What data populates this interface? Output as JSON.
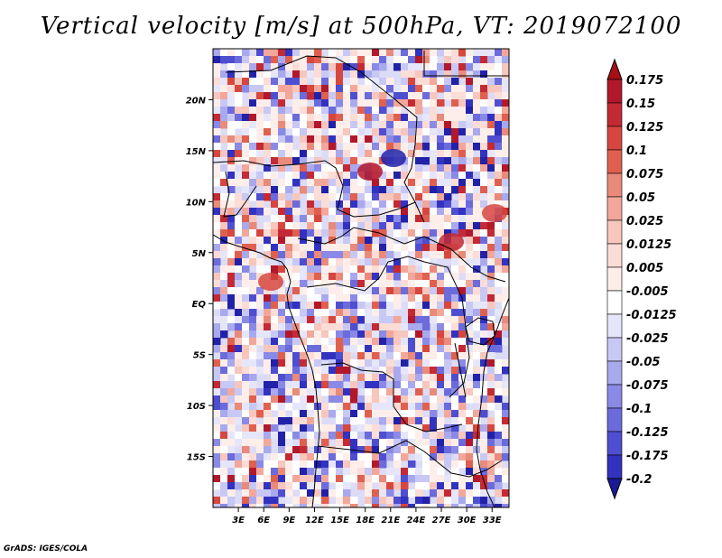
{
  "title": "Vertical velocity [m/s] at 500hPa, VT: 2019072100",
  "credit": "GrADS: IGES/COLA",
  "map": {
    "lat_range": [
      -20,
      25
    ],
    "lon_range": [
      0,
      35
    ],
    "lat_ticks": [
      {
        "value": 20,
        "label": "20N"
      },
      {
        "value": 15,
        "label": "15N"
      },
      {
        "value": 10,
        "label": "10N"
      },
      {
        "value": 5,
        "label": "5N"
      },
      {
        "value": 0,
        "label": "EQ"
      },
      {
        "value": -5,
        "label": "5S"
      },
      {
        "value": -10,
        "label": "10S"
      },
      {
        "value": -15,
        "label": "15S"
      }
    ],
    "lon_ticks": [
      {
        "value": 3,
        "label": "3E"
      },
      {
        "value": 6,
        "label": "6E"
      },
      {
        "value": 9,
        "label": "9E"
      },
      {
        "value": 12,
        "label": "12E"
      },
      {
        "value": 15,
        "label": "15E"
      },
      {
        "value": 18,
        "label": "18E"
      },
      {
        "value": 21,
        "label": "21E"
      },
      {
        "value": 24,
        "label": "24E"
      },
      {
        "value": 27,
        "label": "27E"
      },
      {
        "value": 30,
        "label": "30E"
      },
      {
        "value": 33,
        "label": "33E"
      }
    ]
  },
  "colorbar": {
    "levels": [
      {
        "label": "0.175",
        "color": "#b2182b"
      },
      {
        "label": "0.15",
        "color": "#c42a33"
      },
      {
        "label": "0.125",
        "color": "#d6473f"
      },
      {
        "label": "0.1",
        "color": "#e0604f"
      },
      {
        "label": "0.075",
        "color": "#e98a7a"
      },
      {
        "label": "0.05",
        "color": "#f2a79a"
      },
      {
        "label": "0.025",
        "color": "#f7c6bd"
      },
      {
        "label": "0.0125",
        "color": "#fbdcd6"
      },
      {
        "label": "0.005",
        "color": "#fdeeea"
      },
      {
        "label": "-0.005",
        "color": "#ffffff"
      },
      {
        "label": "-0.0125",
        "color": "#e6e6fb"
      },
      {
        "label": "-0.025",
        "color": "#c8c8f5"
      },
      {
        "label": "-0.05",
        "color": "#a9a9ee"
      },
      {
        "label": "-0.075",
        "color": "#8a8ae6"
      },
      {
        "label": "-0.1",
        "color": "#6b6bdc"
      },
      {
        "label": "-0.125",
        "color": "#4e4ed0"
      },
      {
        "label": "-0.175",
        "color": "#3232c0"
      },
      {
        "label": "-0.2",
        "color": "#2222a8"
      }
    ],
    "top_color": "#a50f15",
    "bottom_color": "#1a1a96"
  }
}
